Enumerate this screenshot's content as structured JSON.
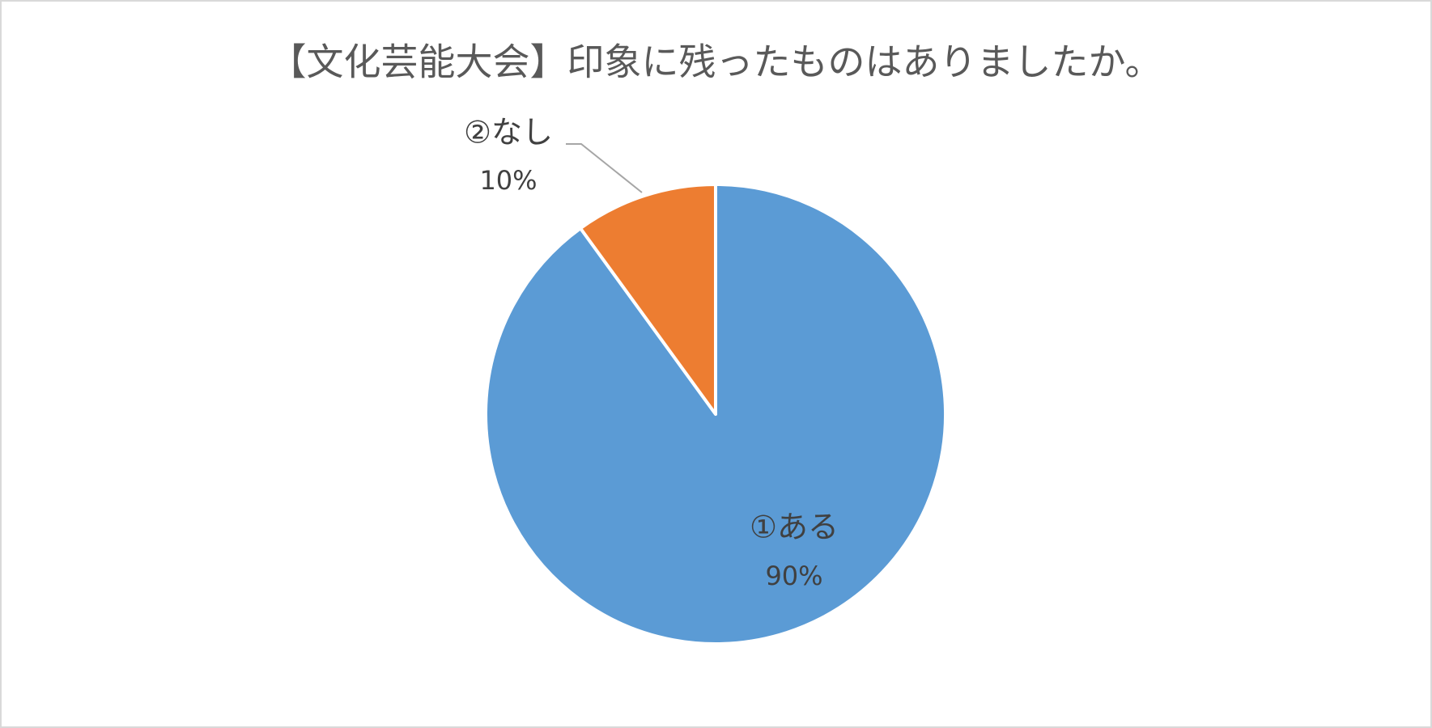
{
  "chart_data": {
    "type": "pie",
    "title": "【文化芸能大会】印象に残ったものはありましたか。",
    "categories": [
      "①ある",
      "②なし"
    ],
    "values": [
      90,
      10
    ],
    "value_labels": [
      "90%",
      "10%"
    ],
    "colors": [
      "#5b9bd5",
      "#ed7d31"
    ]
  }
}
